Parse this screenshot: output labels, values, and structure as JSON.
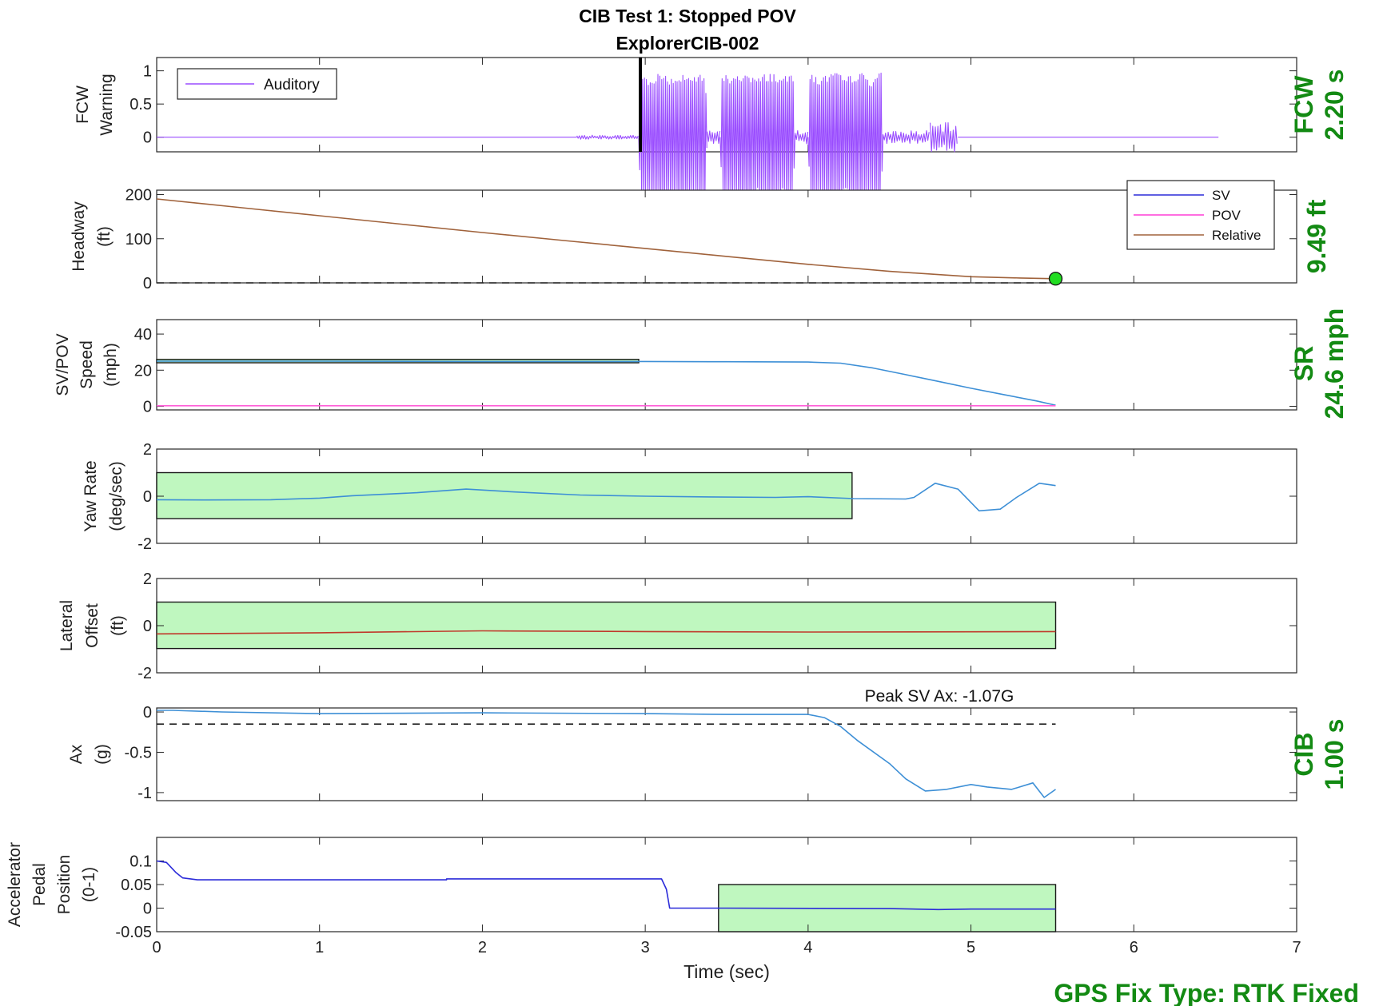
{
  "figure": {
    "title": "CIB Test 1: Stopped POV",
    "subtitle": "ExplorerCIB-002",
    "xlabel": "Time (sec)",
    "gps_text": "GPS Fix Type: RTK Fixed"
  },
  "chart_data": [
    {
      "type": "line",
      "id": "fcw",
      "ylabel": [
        "FCW",
        "Warning"
      ],
      "xlim": [
        0,
        7
      ],
      "ylim": [
        -0.22,
        1.2
      ],
      "yticks": [
        0,
        0.5,
        1
      ],
      "ytick_labels": [
        "0",
        "0.5",
        "1"
      ],
      "legend": {
        "placement": "top-left",
        "entries": [
          {
            "label": "Auditory",
            "color": "#9a4dff"
          }
        ]
      },
      "series": [
        {
          "name": "Auditory",
          "color": "#9a4dff",
          "segments": [
            {
              "x_start": 0,
              "x_end": 2.58,
              "kind": "flat",
              "value": 0
            },
            {
              "x_start": 2.58,
              "x_end": 2.96,
              "kind": "noise",
              "amplitude": 0.03
            },
            {
              "x_start": 2.96,
              "x_end": 3.38,
              "kind": "burst",
              "amplitude": 0.98
            },
            {
              "x_start": 3.38,
              "x_end": 3.46,
              "kind": "noise",
              "amplitude": 0.1
            },
            {
              "x_start": 3.46,
              "x_end": 3.92,
              "kind": "burst",
              "amplitude": 0.98
            },
            {
              "x_start": 3.92,
              "x_end": 4.0,
              "kind": "noise",
              "amplitude": 0.1
            },
            {
              "x_start": 4.0,
              "x_end": 4.46,
              "kind": "burst",
              "amplitude": 0.98
            },
            {
              "x_start": 4.46,
              "x_end": 4.75,
              "kind": "noise",
              "amplitude": 0.1
            },
            {
              "x_start": 4.75,
              "x_end": 4.92,
              "kind": "noise",
              "amplitude": 0.22
            },
            {
              "x_start": 4.92,
              "x_end": 6.52,
              "kind": "flat",
              "value": 0
            }
          ]
        }
      ],
      "vertical_markers": [
        {
          "x": 2.97,
          "color": "#000000"
        }
      ]
    },
    {
      "type": "line",
      "id": "headway",
      "ylabel": [
        "Headway",
        "(ft)"
      ],
      "xlim": [
        0,
        7
      ],
      "ylim": [
        0,
        210
      ],
      "yticks": [
        0,
        100,
        200
      ],
      "ytick_labels": [
        "0",
        "100",
        "200"
      ],
      "legend": {
        "placement": "top-right",
        "entries": [
          {
            "label": "SV",
            "color": "#2b2bd9"
          },
          {
            "label": "POV",
            "color": "#ff3dd6"
          },
          {
            "label": "Relative",
            "color": "#a0623b"
          }
        ]
      },
      "series": [
        {
          "name": "Relative",
          "color": "#a0623b",
          "x": [
            0,
            0.5,
            1,
            1.5,
            2,
            2.5,
            3,
            3.5,
            4,
            4.5,
            5,
            5.3,
            5.52
          ],
          "y": [
            190,
            171,
            152,
            133,
            114,
            96,
            78,
            60,
            42,
            26,
            14,
            11,
            9.5
          ]
        }
      ],
      "reference_lines": [
        {
          "y": 0,
          "x_end": 5.52,
          "style": "dashed"
        }
      ],
      "markers": [
        {
          "x": 5.52,
          "y": 9.49,
          "color": "#22dd22"
        }
      ]
    },
    {
      "type": "line",
      "id": "speed",
      "ylabel": [
        "SV/POV",
        "Speed",
        "(mph)"
      ],
      "xlim": [
        0,
        7
      ],
      "ylim": [
        -2,
        48
      ],
      "yticks": [
        0,
        20,
        40
      ],
      "ytick_labels": [
        "0",
        "20",
        "40"
      ],
      "series": [
        {
          "name": "SV",
          "color": "#3d8fd6",
          "x": [
            0,
            1,
            2,
            3,
            3.5,
            4,
            4.2,
            4.4,
            4.6,
            4.8,
            5.0,
            5.2,
            5.4,
            5.52
          ],
          "y": [
            25,
            25,
            24.8,
            24.8,
            24.7,
            24.5,
            23.9,
            21.2,
            17.5,
            13.8,
            10,
            6.5,
            3,
            0.6
          ]
        },
        {
          "name": "POV",
          "color": "#ff5fd8",
          "x": [
            0,
            5.52
          ],
          "y": [
            0.3,
            0.3
          ]
        }
      ],
      "bands": [
        {
          "x0": 0,
          "x1": 2.96,
          "y0": 24.1,
          "y1": 26.0
        }
      ]
    },
    {
      "type": "line",
      "id": "yaw",
      "ylabel": [
        "Yaw Rate",
        "(deg/sec)"
      ],
      "xlim": [
        0,
        7
      ],
      "ylim": [
        -2,
        2
      ],
      "yticks": [
        -2,
        0,
        2
      ],
      "ytick_labels": [
        "-2",
        "0",
        "2"
      ],
      "series": [
        {
          "name": "SV",
          "color": "#3d8fd6",
          "x": [
            0,
            0.3,
            0.7,
            1.0,
            1.2,
            1.6,
            1.9,
            2.2,
            2.6,
            3.0,
            3.4,
            3.8,
            4.0,
            4.28,
            4.6,
            4.65,
            4.78,
            4.92,
            5.05,
            5.18,
            5.28,
            5.42,
            5.52
          ],
          "y": [
            -0.15,
            -0.16,
            -0.15,
            -0.08,
            0.02,
            0.15,
            0.3,
            0.18,
            0.05,
            0.0,
            -0.03,
            -0.05,
            -0.02,
            -0.1,
            -0.12,
            -0.05,
            0.55,
            0.3,
            -0.62,
            -0.55,
            -0.05,
            0.55,
            0.45
          ]
        }
      ],
      "bands": [
        {
          "x0": 0,
          "x1": 4.27,
          "y0": -0.95,
          "y1": 1.0
        }
      ]
    },
    {
      "type": "line",
      "id": "lateral",
      "ylabel": [
        "Lateral",
        "Offset",
        "(ft)"
      ],
      "xlim": [
        0,
        7
      ],
      "ylim": [
        -2,
        2
      ],
      "yticks": [
        -2,
        0,
        2
      ],
      "ytick_labels": [
        "-2",
        "0",
        "2"
      ],
      "series": [
        {
          "name": "SV",
          "color": "#c0392b",
          "x": [
            0,
            1,
            2,
            3,
            4,
            5,
            5.52
          ],
          "y": [
            -0.35,
            -0.3,
            -0.22,
            -0.25,
            -0.27,
            -0.26,
            -0.25
          ]
        }
      ],
      "bands": [
        {
          "x0": 0,
          "x1": 5.52,
          "y0": -0.97,
          "y1": 1.0
        }
      ]
    },
    {
      "type": "line",
      "id": "ax",
      "ylabel": [
        "Ax",
        "(g)"
      ],
      "xlim": [
        0,
        7
      ],
      "ylim": [
        -1.1,
        0.05
      ],
      "yticks": [
        -1,
        -0.5,
        0
      ],
      "ytick_labels": [
        "-1",
        "-0.5",
        "0"
      ],
      "annotation": "Peak SV Ax: -1.07G",
      "series": [
        {
          "name": "SV",
          "color": "#3d8fd6",
          "x": [
            0,
            0.1,
            0.4,
            1,
            2,
            3,
            3.5,
            4.0,
            4.1,
            4.2,
            4.3,
            4.5,
            4.6,
            4.72,
            4.85,
            5.0,
            5.1,
            5.25,
            5.38,
            5.45,
            5.52
          ],
          "y": [
            0.02,
            0.02,
            0.0,
            -0.02,
            -0.01,
            -0.02,
            -0.03,
            -0.03,
            -0.07,
            -0.18,
            -0.35,
            -0.64,
            -0.83,
            -0.98,
            -0.96,
            -0.9,
            -0.93,
            -0.96,
            -0.88,
            -1.06,
            -0.96
          ]
        }
      ],
      "reference_lines": [
        {
          "y": -0.15,
          "x_end": 5.52,
          "style": "dashed"
        }
      ]
    },
    {
      "type": "line",
      "id": "pedal",
      "ylabel": [
        "Accelerator",
        "Pedal",
        "Position",
        "(0-1)"
      ],
      "xlim": [
        0,
        7
      ],
      "ylim": [
        -0.05,
        0.15
      ],
      "yticks": [
        -0.05,
        0,
        0.05,
        0.1
      ],
      "ytick_labels": [
        "-0.05",
        "0",
        "0.05",
        "0.1"
      ],
      "xticks": [
        0,
        1,
        2,
        3,
        4,
        5,
        6,
        7
      ],
      "xtick_labels": [
        "0",
        "1",
        "2",
        "3",
        "4",
        "5",
        "6",
        "7"
      ],
      "series": [
        {
          "name": "SV",
          "color": "#2b2bd9",
          "x": [
            0,
            0.06,
            0.12,
            0.16,
            0.25,
            1.78,
            1.78,
            3.1,
            3.13,
            3.15,
            3.5,
            4.5,
            4.8,
            5.0,
            5.52
          ],
          "y": [
            0.1,
            0.097,
            0.075,
            0.064,
            0.06,
            0.06,
            0.062,
            0.062,
            0.04,
            0.0,
            0.0,
            -0.001,
            -0.003,
            -0.002,
            -0.002
          ]
        }
      ],
      "bands": [
        {
          "x0": 3.45,
          "x1": 5.52,
          "y0": -0.05,
          "y1": 0.05
        }
      ]
    }
  ],
  "side_labels": [
    {
      "line1": "FCW",
      "line2": "2.20 s"
    },
    {
      "line1": "9.49 ft"
    },
    {
      "line1": "SR",
      "line2": "24.6 mph"
    },
    {
      "line1": "CIB",
      "line2": "1.00 s"
    }
  ],
  "colors": {
    "band_fill": "#bff7bf",
    "side_text": "#138a13"
  }
}
